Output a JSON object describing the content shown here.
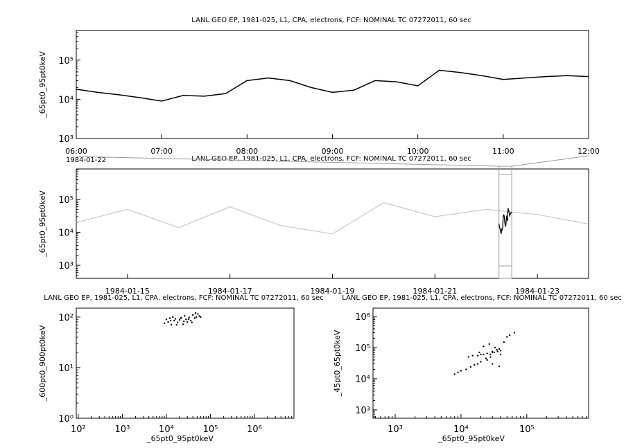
{
  "chart_data": [
    {
      "type": "line",
      "title": "LANL GEO EP, 1981-025, L1, CPA, electrons, FCF: NOMINAL TC 07272011, 60 sec",
      "ylabel": "_65pt0_95pt0keV",
      "date_label": "1984-01-22",
      "ylog": true,
      "x": [
        "06:00",
        "06:15",
        "06:30",
        "06:45",
        "07:00",
        "07:15",
        "07:30",
        "07:45",
        "08:00",
        "08:15",
        "08:30",
        "08:45",
        "09:00",
        "09:15",
        "09:30",
        "09:45",
        "10:00",
        "10:15",
        "10:30",
        "10:45",
        "11:00",
        "11:15",
        "11:30",
        "11:45",
        "12:00"
      ],
      "series": [
        {
          "color": "#000000",
          "values": [
            18000,
            15000,
            13000,
            11000,
            9000,
            12500,
            12000,
            14000,
            30000,
            35000,
            30000,
            20000,
            15000,
            17000,
            30000,
            28000,
            22000,
            55000,
            48000,
            40000,
            32000,
            35000,
            38000,
            40000,
            38000
          ]
        }
      ],
      "xlim": [
        "06:00",
        "12:00"
      ],
      "xticks": [
        "06:00",
        "07:00",
        "08:00",
        "09:00",
        "10:00",
        "11:00",
        "12:00"
      ],
      "ylim": [
        1000,
        570000
      ],
      "yticks": [
        {
          "value": 1000,
          "label": "10³"
        },
        {
          "value": 10000,
          "label": "10⁴"
        },
        {
          "value": 100000,
          "label": "10⁵"
        }
      ]
    },
    {
      "type": "line",
      "title": "LANL GEO EP, 1981-025, L1, CPA, electrons, FCF: NOMINAL TC 07272011, 60 sec",
      "ylabel": "_65pt0_95pt0keV",
      "ylog": true,
      "highlight_color": "#000000",
      "x": [
        "1984-01-14",
        "1984-01-15",
        "1984-01-16",
        "1984-01-17",
        "1984-01-18",
        "1984-01-19",
        "1984-01-20",
        "1984-01-21",
        "1984-01-22",
        "1984-01-23",
        "1984-01-24"
      ],
      "series": [
        {
          "color": "#c8c8c8",
          "values": [
            20000,
            50000,
            14000,
            60000,
            16000,
            9000,
            80000,
            30000,
            50000,
            35000,
            18000
          ]
        }
      ],
      "xlim": [
        "1984-01-14",
        "1984-01-24"
      ],
      "xticks": [
        "1984-01-15",
        "1984-01-17",
        "1984-01-19",
        "1984-01-21",
        "1984-01-23"
      ],
      "ylim": [
        400,
        850000
      ],
      "yticks": [
        {
          "value": 1000,
          "label": "10³"
        },
        {
          "value": 10000,
          "label": "10⁴"
        },
        {
          "value": 100000,
          "label": "10⁵"
        }
      ]
    },
    {
      "type": "scatter",
      "title": "LANL GEO EP, 1981-025, L1, CPA, electrons, FCF: NOMINAL TC 07272011, 60 sec",
      "xlabel": "_65pt0_95pt0keV",
      "ylabel": "_600pt0_900pt0keV",
      "xlog": true,
      "ylog": true,
      "color": "#000000",
      "x": [
        9000,
        10000,
        11000,
        12000,
        13000,
        14000,
        15000,
        16000,
        18000,
        20000,
        22000,
        24000,
        26000,
        28000,
        30000,
        33000,
        36000,
        40000,
        44000,
        48000,
        52000,
        56000,
        60000,
        12500,
        17000,
        21000,
        25000,
        32000,
        38000,
        46000
      ],
      "y": [
        75,
        90,
        80,
        95,
        70,
        100,
        85,
        92,
        78,
        88,
        96,
        72,
        105,
        90,
        80,
        98,
        85,
        110,
        95,
        100,
        115,
        105,
        100,
        85,
        70,
        95,
        82,
        90,
        78,
        120
      ],
      "xlim": [
        90,
        7900000
      ],
      "xticks": [
        {
          "value": 100,
          "label": "10²"
        },
        {
          "value": 1000,
          "label": "10³"
        },
        {
          "value": 10000,
          "label": "10⁴"
        },
        {
          "value": 100000,
          "label": "10⁵"
        },
        {
          "value": 1000000,
          "label": "10⁶"
        }
      ],
      "ylim": [
        1,
        150
      ],
      "yticks": [
        {
          "value": 1,
          "label": "10⁰"
        },
        {
          "value": 10,
          "label": "10¹"
        },
        {
          "value": 100,
          "label": "10²"
        }
      ]
    },
    {
      "type": "scatter",
      "title": "LANL GEO EP, 1981-025, L1, CPA, electrons, FCF: NOMINAL TC 07272011, 60 sec",
      "xlabel": "_65pt0_95pt0keV",
      "ylabel": "_45pt0_65pt0keV",
      "xlog": true,
      "ylog": true,
      "color": "#000000",
      "x": [
        8000,
        9000,
        10000,
        12000,
        14000,
        16000,
        18000,
        20000,
        24000,
        28000,
        32000,
        36000,
        40000,
        30000,
        25000,
        20000,
        15000,
        13000,
        18000,
        22000,
        30000,
        38000,
        45000,
        50000,
        55000,
        65000,
        35000,
        28000,
        25000,
        30000,
        38000,
        40000,
        33000,
        27000,
        22000,
        19000
      ],
      "y": [
        14000,
        16000,
        18000,
        20000,
        24000,
        28000,
        30000,
        35000,
        45000,
        60000,
        70000,
        75000,
        80000,
        70000,
        65000,
        60000,
        55000,
        50000,
        55000,
        60000,
        75000,
        90000,
        150000,
        220000,
        250000,
        300000,
        85000,
        50000,
        40000,
        30000,
        25000,
        60000,
        100000,
        130000,
        110000,
        70000
      ],
      "xlim": [
        460,
        870000
      ],
      "xticks": [
        {
          "value": 1000,
          "label": "10³"
        },
        {
          "value": 10000,
          "label": "10⁴"
        },
        {
          "value": 100000,
          "label": "10⁵"
        }
      ],
      "ylim": [
        540,
        1850000
      ],
      "yticks": [
        {
          "value": 1000,
          "label": "10³"
        },
        {
          "value": 10000,
          "label": "10⁴"
        },
        {
          "value": 100000,
          "label": "10⁵"
        },
        {
          "value": 1000000,
          "label": "10⁶"
        }
      ]
    }
  ]
}
